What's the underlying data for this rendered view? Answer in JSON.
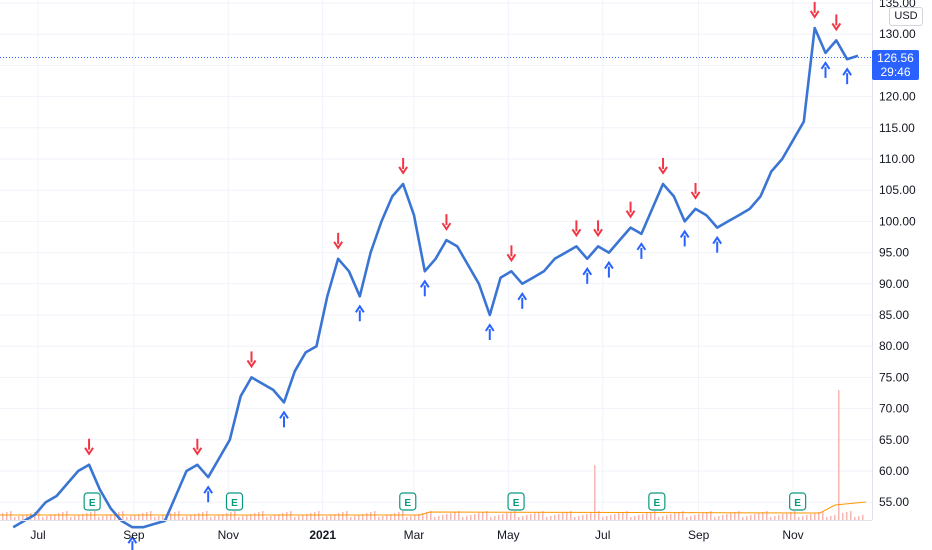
{
  "chart_data": {
    "type": "line",
    "symbol_currency": "USD",
    "last_price": "126.56",
    "countdown": "29:46",
    "y_ticks": [
      "135.00",
      "130.00",
      "125.00",
      "120.00",
      "115.00",
      "110.00",
      "105.00",
      "100.00",
      "95.00",
      "90.00",
      "85.00",
      "80.00",
      "75.00",
      "70.00",
      "65.00",
      "60.00",
      "55.00"
    ],
    "x_ticks": [
      "Jul",
      "Sep",
      "Nov",
      "2021",
      "Mar",
      "May",
      "Jul",
      "Sep",
      "Nov"
    ],
    "ylim": [
      51.5,
      136
    ],
    "grid": true,
    "colors": {
      "line": "#3a75d4",
      "buy": "#2962ff",
      "sell": "#f23645",
      "earnings": "#089981",
      "volume": "#f5b7b1",
      "volume_ma": "#ff9800",
      "price_tag": "#2962ff"
    },
    "earnings_label": "E",
    "earnings_dates": [
      "2020-08-05",
      "2020-11-05",
      "2021-02-25",
      "2021-05-06",
      "2021-08-05",
      "2021-11-04"
    ],
    "series": [
      {
        "x": [
          "2020-06-15",
          "2020-06-22",
          "2020-06-29",
          "2020-07-06",
          "2020-07-13",
          "2020-07-20",
          "2020-07-27",
          "2020-08-03",
          "2020-08-10",
          "2020-08-17",
          "2020-08-24",
          "2020-08-31",
          "2020-09-07",
          "2020-09-14",
          "2020-09-21",
          "2020-09-28",
          "2020-10-05",
          "2020-10-12",
          "2020-10-19",
          "2020-10-26",
          "2020-11-02",
          "2020-11-09",
          "2020-11-16",
          "2020-11-23",
          "2020-11-30",
          "2020-12-07",
          "2020-12-14",
          "2020-12-21",
          "2020-12-28",
          "2021-01-04",
          "2021-01-11",
          "2021-01-18",
          "2021-01-25",
          "2021-02-01",
          "2021-02-08",
          "2021-02-15",
          "2021-02-22",
          "2021-03-01",
          "2021-03-08",
          "2021-03-15",
          "2021-03-22",
          "2021-03-29",
          "2021-04-05",
          "2021-04-12",
          "2021-04-19",
          "2021-04-26",
          "2021-05-03",
          "2021-05-10",
          "2021-05-17",
          "2021-05-24",
          "2021-05-31",
          "2021-06-07",
          "2021-06-14",
          "2021-06-21",
          "2021-06-28",
          "2021-07-05",
          "2021-07-12",
          "2021-07-19",
          "2021-07-26",
          "2021-08-02",
          "2021-08-09",
          "2021-08-16",
          "2021-08-23",
          "2021-08-30",
          "2021-09-06",
          "2021-09-13",
          "2021-09-20",
          "2021-09-27",
          "2021-10-04",
          "2021-10-11",
          "2021-10-18",
          "2021-10-25",
          "2021-11-01",
          "2021-11-08",
          "2021-11-15",
          "2021-11-22",
          "2021-11-29",
          "2021-12-06",
          "2021-12-13"
        ],
        "values": [
          51,
          52,
          53,
          55,
          56,
          58,
          60,
          61,
          57,
          54,
          52,
          51,
          51,
          51.5,
          52,
          56,
          60,
          61,
          59,
          62,
          65,
          72,
          75,
          74,
          73,
          71,
          76,
          79,
          80,
          88,
          94,
          92,
          88,
          95,
          100,
          104,
          106,
          101,
          92,
          94,
          97,
          96,
          93,
          90,
          85,
          91,
          92,
          90,
          91,
          92,
          94,
          95,
          96,
          94,
          96,
          95,
          97,
          99,
          98,
          102,
          106,
          104,
          100,
          102,
          101,
          99,
          100,
          101,
          102,
          104,
          108,
          110,
          113,
          116,
          131,
          127,
          129,
          126,
          126.56
        ]
      }
    ]
  }
}
